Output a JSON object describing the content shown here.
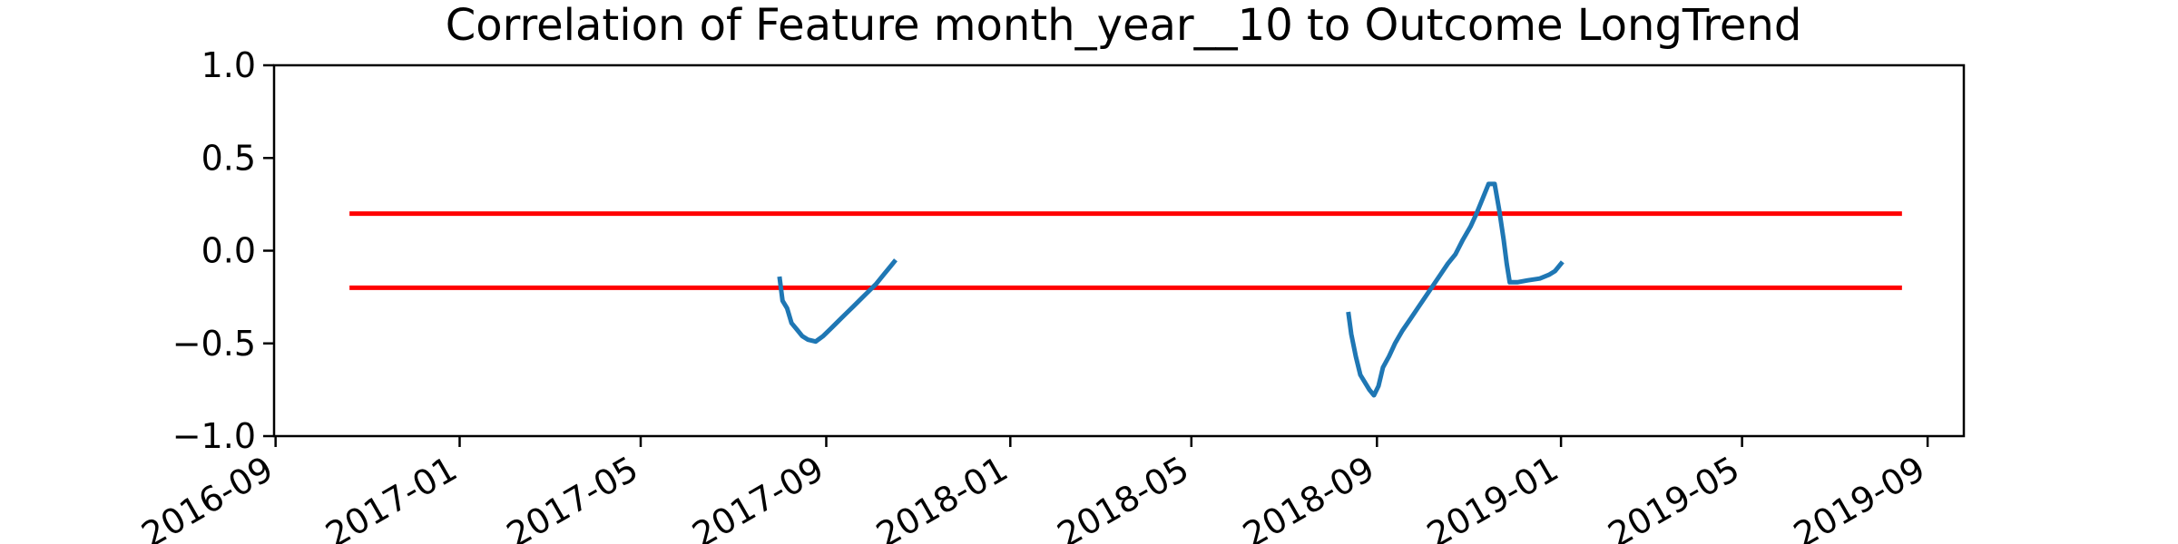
{
  "chart_data": {
    "type": "line",
    "title": "Correlation of Feature month_year__10 to Outcome LongTrend",
    "xlabel": "",
    "ylabel": "",
    "ylim": [
      -1.0,
      1.0
    ],
    "xlim": [
      "2016-08-31",
      "2019-09-25"
    ],
    "x_ticks": [
      "2016-09",
      "2017-01",
      "2017-05",
      "2017-09",
      "2018-01",
      "2018-05",
      "2018-09",
      "2019-01",
      "2019-05",
      "2019-09"
    ],
    "y_ticks": [
      "1.0",
      "0.5",
      "0.0",
      "−0.5",
      "−1.0"
    ],
    "y_tick_values": [
      1.0,
      0.5,
      0.0,
      -0.5,
      -1.0
    ],
    "grid": false,
    "threshold_lines": [
      {
        "y": 0.2,
        "x": [
          "2016-10-20",
          "2019-08-15"
        ],
        "color": "#ff0000"
      },
      {
        "y": -0.2,
        "x": [
          "2016-10-20",
          "2019-08-15"
        ],
        "color": "#ff0000"
      }
    ],
    "series": [
      {
        "color": "#1f77b4",
        "points": [
          [
            "2017-08-01",
            -0.14
          ],
          [
            "2017-08-03",
            -0.27
          ],
          [
            "2017-08-06",
            -0.31
          ],
          [
            "2017-08-09",
            -0.39
          ],
          [
            "2017-08-13",
            -0.43
          ],
          [
            "2017-08-16",
            -0.46
          ],
          [
            "2017-08-20",
            -0.48
          ],
          [
            "2017-08-25",
            -0.49
          ],
          [
            "2017-08-30",
            -0.46
          ],
          [
            "2017-09-04",
            -0.42
          ],
          [
            "2017-09-09",
            -0.38
          ],
          [
            "2017-09-14",
            -0.34
          ],
          [
            "2017-09-19",
            -0.3
          ],
          [
            "2017-09-24",
            -0.26
          ],
          [
            "2017-09-29",
            -0.22
          ],
          [
            "2017-10-04",
            -0.18
          ],
          [
            "2017-10-09",
            -0.13
          ],
          [
            "2017-10-14",
            -0.08
          ],
          [
            "2017-10-17",
            -0.05
          ]
        ]
      },
      {
        "color": "#1f77b4",
        "points": [
          [
            "2018-08-13",
            -0.33
          ],
          [
            "2018-08-15",
            -0.45
          ],
          [
            "2018-08-18",
            -0.57
          ],
          [
            "2018-08-21",
            -0.67
          ],
          [
            "2018-08-24",
            -0.71
          ],
          [
            "2018-08-27",
            -0.75
          ],
          [
            "2018-08-30",
            -0.78
          ],
          [
            "2018-09-02",
            -0.73
          ],
          [
            "2018-09-05",
            -0.63
          ],
          [
            "2018-09-09",
            -0.57
          ],
          [
            "2018-09-13",
            -0.5
          ],
          [
            "2018-09-18",
            -0.43
          ],
          [
            "2018-09-23",
            -0.37
          ],
          [
            "2018-09-28",
            -0.31
          ],
          [
            "2018-10-03",
            -0.25
          ],
          [
            "2018-10-08",
            -0.19
          ],
          [
            "2018-10-13",
            -0.13
          ],
          [
            "2018-10-18",
            -0.07
          ],
          [
            "2018-10-23",
            -0.02
          ],
          [
            "2018-10-28",
            0.06
          ],
          [
            "2018-11-02",
            0.13
          ],
          [
            "2018-11-06",
            0.2
          ],
          [
            "2018-11-10",
            0.28
          ],
          [
            "2018-11-14",
            0.36
          ],
          [
            "2018-11-18",
            0.36
          ],
          [
            "2018-11-21",
            0.22
          ],
          [
            "2018-11-24",
            0.06
          ],
          [
            "2018-11-26",
            -0.07
          ],
          [
            "2018-11-28",
            -0.17
          ],
          [
            "2018-12-03",
            -0.17
          ],
          [
            "2018-12-10",
            -0.16
          ],
          [
            "2018-12-18",
            -0.15
          ],
          [
            "2018-12-24",
            -0.13
          ],
          [
            "2018-12-28",
            -0.11
          ],
          [
            "2019-01-02",
            -0.06
          ]
        ]
      }
    ]
  }
}
